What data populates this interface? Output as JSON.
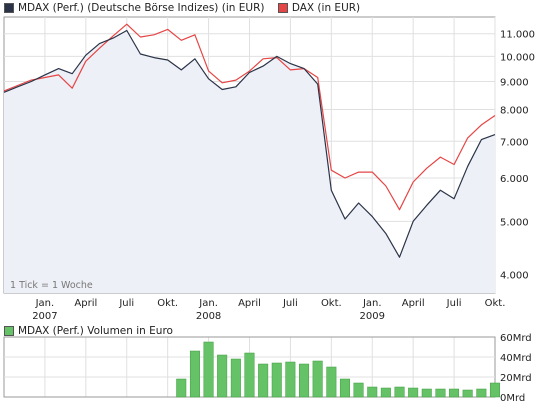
{
  "chart_data": [
    {
      "type": "line",
      "scale": "log",
      "ylim": [
        3700,
        11800
      ],
      "y_ticks": [
        "11.000",
        "10.000",
        "9.000",
        "8.000",
        "7.000",
        "6.000",
        "5.000",
        "4.000"
      ],
      "y_tick_values": [
        11000,
        10000,
        9000,
        8000,
        7000,
        6000,
        5000,
        4000
      ],
      "x_range": [
        "2006-10",
        "2009-10"
      ],
      "x_ticks": [
        {
          "label": "Jan.",
          "pos": "2007-01",
          "year": "2007"
        },
        {
          "label": "April",
          "pos": "2007-04",
          "year": ""
        },
        {
          "label": "Juli",
          "pos": "2007-07",
          "year": ""
        },
        {
          "label": "Okt.",
          "pos": "2007-10",
          "year": ""
        },
        {
          "label": "Jan.",
          "pos": "2008-01",
          "year": "2008"
        },
        {
          "label": "April",
          "pos": "2008-04",
          "year": ""
        },
        {
          "label": "Juli",
          "pos": "2008-07",
          "year": ""
        },
        {
          "label": "Okt.",
          "pos": "2008-10",
          "year": ""
        },
        {
          "label": "Jan.",
          "pos": "2009-01",
          "year": "2009"
        },
        {
          "label": "April",
          "pos": "2009-04",
          "year": ""
        },
        {
          "label": "Juli",
          "pos": "2009-07",
          "year": ""
        },
        {
          "label": "Okt.",
          "pos": "2009-10",
          "year": ""
        }
      ],
      "grid": true,
      "legend_position": "top-left",
      "note": "1 Tick = 1 Woche",
      "series": [
        {
          "name": "MDAX (Perf.) (Deutsche Börse Indizes) (in EUR)",
          "color": "#2a3347",
          "fill": "#eef0f7",
          "x": [
            "2006-10",
            "2006-11",
            "2006-12",
            "2007-01",
            "2007-02",
            "2007-03",
            "2007-04",
            "2007-05",
            "2007-06",
            "2007-07",
            "2007-08",
            "2007-09",
            "2007-10",
            "2007-11",
            "2007-12",
            "2008-01",
            "2008-02",
            "2008-03",
            "2008-04",
            "2008-05",
            "2008-06",
            "2008-07",
            "2008-08",
            "2008-09",
            "2008-10",
            "2008-11",
            "2008-12",
            "2009-01",
            "2009-02",
            "2009-03",
            "2009-04",
            "2009-05",
            "2009-06",
            "2009-07",
            "2009-08",
            "2009-09",
            "2009-10"
          ],
          "y": [
            8600,
            8800,
            9000,
            9250,
            9500,
            9300,
            10050,
            10550,
            10800,
            11150,
            10100,
            9950,
            9850,
            9450,
            9900,
            9100,
            8700,
            8800,
            9350,
            9600,
            10000,
            9700,
            9500,
            8900,
            5700,
            5050,
            5400,
            5100,
            4750,
            4300,
            5000,
            5350,
            5700,
            5500,
            6300,
            7050,
            7200
          ]
        },
        {
          "name": "DAX (in EUR)",
          "color": "#e64545",
          "x": [
            "2006-10",
            "2006-11",
            "2006-12",
            "2007-01",
            "2007-02",
            "2007-03",
            "2007-04",
            "2007-05",
            "2007-06",
            "2007-07",
            "2007-08",
            "2007-09",
            "2007-10",
            "2007-11",
            "2007-12",
            "2008-01",
            "2008-02",
            "2008-03",
            "2008-04",
            "2008-05",
            "2008-06",
            "2008-07",
            "2008-08",
            "2008-09",
            "2008-10",
            "2008-11",
            "2008-12",
            "2009-01",
            "2009-02",
            "2009-03",
            "2009-04",
            "2009-05",
            "2009-06",
            "2009-07",
            "2009-08",
            "2009-09",
            "2009-10"
          ],
          "y": [
            8650,
            8850,
            9050,
            9150,
            9250,
            8750,
            9800,
            10350,
            10900,
            11450,
            10850,
            10950,
            11200,
            10700,
            10950,
            9400,
            8950,
            9050,
            9400,
            9900,
            9950,
            9450,
            9500,
            9150,
            6200,
            6000,
            6150,
            6150,
            5800,
            5250,
            5900,
            6250,
            6550,
            6350,
            7100,
            7500,
            7800
          ]
        }
      ]
    },
    {
      "type": "bar",
      "title": "MDAX (Perf.) Volumen in Euro",
      "color": "#66c266",
      "ylim": [
        0,
        60
      ],
      "y_ticks": [
        "60Mrd",
        "40Mrd",
        "20Mrd",
        "0Mrd"
      ],
      "y_tick_values": [
        60,
        40,
        20,
        0
      ],
      "x": [
        "2007-11",
        "2007-12",
        "2008-01",
        "2008-02",
        "2008-03",
        "2008-04",
        "2008-05",
        "2008-06",
        "2008-07",
        "2008-08",
        "2008-09",
        "2008-10",
        "2008-11",
        "2008-12",
        "2009-01",
        "2009-02",
        "2009-03",
        "2009-04",
        "2009-05",
        "2009-06",
        "2009-07",
        "2009-08",
        "2009-09",
        "2009-10"
      ],
      "values": [
        18,
        46,
        55,
        42,
        38,
        44,
        33,
        34,
        35,
        33,
        36,
        30,
        18,
        14,
        10,
        9,
        10,
        9,
        8,
        8,
        8,
        7,
        8,
        14
      ]
    }
  ]
}
